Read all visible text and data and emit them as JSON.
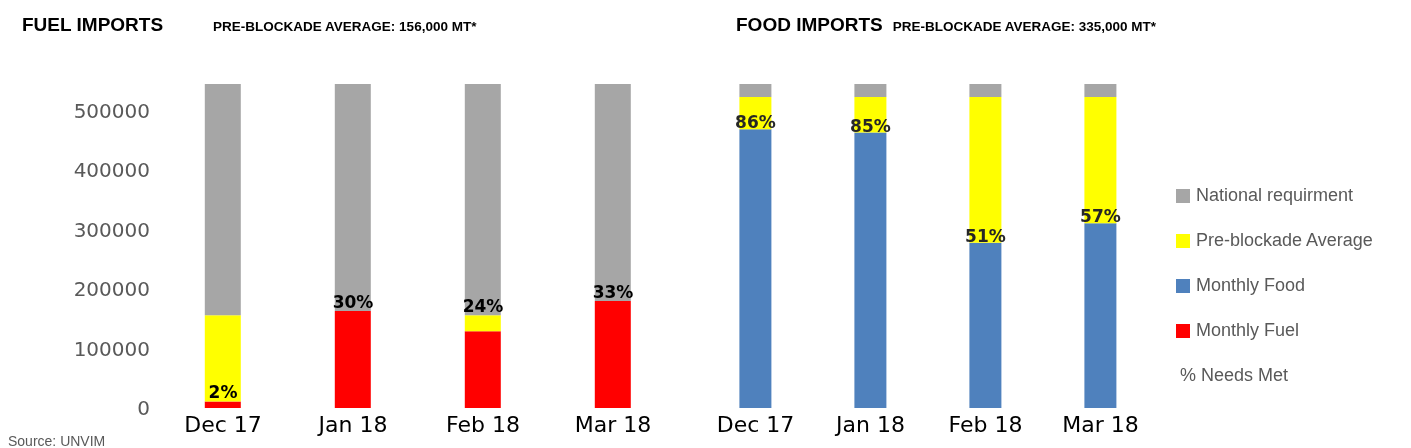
{
  "chart_data": [
    {
      "type": "bar",
      "title": "FUEL IMPORTS",
      "subtitle": "PRE-BLOCKADE AVERAGE: 156,000 MT*",
      "categories": [
        "Dec 17",
        "Jan 18",
        "Feb 18",
        "Mar 18"
      ],
      "stacked": true,
      "ylim": [
        0,
        545000
      ],
      "yticks": [
        0,
        100000,
        200000,
        300000,
        400000,
        500000
      ],
      "grid": false,
      "legend": false,
      "annotations": [
        "Source: UNVIM",
        {
          "text": "2%",
          "x": "Dec 17",
          "y": 11000
        },
        {
          "text": "30%",
          "x": "Jan 18",
          "y": 163000
        },
        {
          "text": "24%",
          "x": "Feb 18",
          "y": 156000
        },
        {
          "text": "33%",
          "x": "Mar 18",
          "y": 180000
        }
      ],
      "series": [
        {
          "name": "Monthly Fuel",
          "color": "#ff0000",
          "values": [
            11000,
            163000,
            129000,
            180000
          ]
        },
        {
          "color": "#ffff00",
          "values": [
            145000,
            0,
            27000,
            0
          ]
        },
        {
          "color": "#a6a6a6",
          "values": [
            389000,
            382000,
            389000,
            365000
          ]
        }
      ]
    },
    {
      "type": "bar",
      "title": "FOOD IMPORTS",
      "subtitle": "PRE-BLOCKADE AVERAGE: 335,000 MT*",
      "categories": [
        "Dec 17",
        "Jan 18",
        "Feb 18",
        "Mar 18"
      ],
      "stacked": true,
      "ylim": [
        0,
        100
      ],
      "tick_labels": "x",
      "grid": false,
      "legend": "right",
      "annotations": [
        "% Needs Met"
      ],
      "series": [
        {
          "name": "Monthly Food",
          "color": "#4f81bd",
          "values": [
            86,
            85,
            51,
            57
          ],
          "value_labels": [
            "86%",
            "85%",
            "51%",
            "57%"
          ]
        },
        {
          "name": "Pre-blockade Average",
          "color": "#ffff00",
          "values": [
            10,
            11,
            45,
            39
          ]
        },
        {
          "name": "National requirment",
          "color": "#a6a6a6",
          "values": [
            4,
            4,
            4,
            4
          ]
        }
      ]
    }
  ]
}
